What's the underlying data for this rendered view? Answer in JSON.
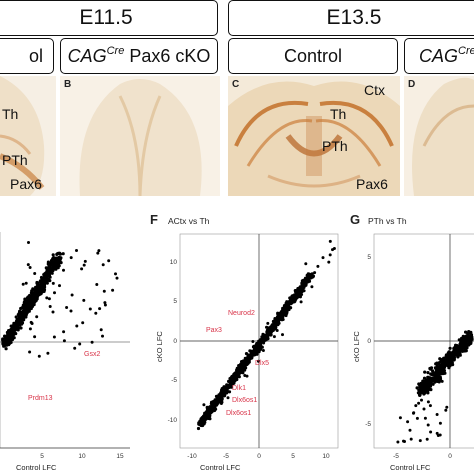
{
  "stages": {
    "e11_5": "E11.5",
    "e13_5": "E13.5"
  },
  "conditions": {
    "control_left": "ol",
    "cko_b_cag": "CAG",
    "cko_b_sup": "Cre",
    "cko_b_rest": " Pax6 cKO",
    "control_right": "Control",
    "cko_d_cag": "CAG",
    "cko_d_sup": "Cre"
  },
  "panels": {
    "a": {
      "labels": [
        "Th",
        "PTh",
        "Pax6"
      ]
    },
    "b": {
      "letter": "B"
    },
    "c": {
      "letter": "C",
      "labels": [
        "Ctx",
        "Th",
        "PTh",
        "Pax6"
      ]
    },
    "d": {
      "letter": "D"
    }
  },
  "plots": {
    "e": {
      "x_ticks": [
        "5",
        "10",
        "15"
      ],
      "xlabel": "Control LFC",
      "genes": [
        "Gsx2",
        "Prdm13"
      ]
    },
    "f": {
      "letter": "F",
      "title": "ACtx vs Th",
      "x_ticks": [
        "-10",
        "-5",
        "0",
        "5",
        "10"
      ],
      "y_ticks": [
        "10",
        "5",
        "0",
        "-5",
        "-10"
      ],
      "xlabel": "Control LFC",
      "ylabel": "cKO LFC",
      "genes": [
        "Neurod2",
        "Pax3",
        "Dlx5",
        "Dlk1",
        "Dlx6os1",
        "Dlx6os1"
      ]
    },
    "g": {
      "letter": "G",
      "title": "PTh vs Th",
      "x_ticks": [
        "-5",
        "0"
      ],
      "y_ticks": [
        "5",
        "0",
        "-5"
      ],
      "xlabel": "Control LFC",
      "ylabel": "cKO LFC"
    }
  },
  "colors": {
    "stain": "#c9803f",
    "gene_label": "#d9354a"
  }
}
